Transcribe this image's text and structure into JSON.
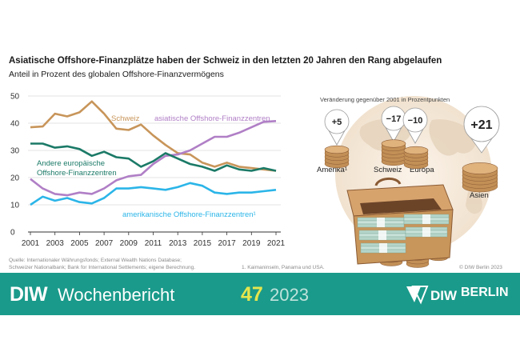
{
  "header": {
    "title": "Asiatische Offshore-Finanzplätze haben der Schweiz in den letzten 20 Jahren den Rang abgelaufen",
    "subtitle": "Anteil in Prozent des globalen Offshore-Finanzvermögens"
  },
  "chart_data": {
    "type": "line",
    "title": "Asiatische Offshore-Finanzplätze haben der Schweiz in den letzten 20 Jahren den Rang abgelaufen",
    "subtitle": "Anteil in Prozent des globalen Offshore-Finanzvermögens",
    "xlabel": "",
    "ylabel": "",
    "ylim": [
      0,
      50
    ],
    "yticks": [
      "0",
      "10",
      "20",
      "30",
      "40",
      "50"
    ],
    "xlim": [
      2001,
      2021
    ],
    "xticks": [
      "2001",
      "2003",
      "2005",
      "2007",
      "2009",
      "2011",
      "2013",
      "2015",
      "2017",
      "2019",
      "2021"
    ],
    "x": [
      2001,
      2002,
      2003,
      2004,
      2005,
      2006,
      2007,
      2008,
      2009,
      2010,
      2011,
      2012,
      2013,
      2014,
      2015,
      2016,
      2017,
      2018,
      2019,
      2020,
      2021
    ],
    "series": [
      {
        "name": "Schweiz",
        "label": "Schweiz",
        "color": "#c8955a",
        "values": [
          38.5,
          38.8,
          43.5,
          42.5,
          44.0,
          48.0,
          43.5,
          38.0,
          37.5,
          39.5,
          35.5,
          32.0,
          29.0,
          28.5,
          25.5,
          24.0,
          25.5,
          24.0,
          23.5,
          23.0,
          22.5
        ]
      },
      {
        "name": "asiatische Offshore-Finanzzentren",
        "label": "asiatische Offshore-Finanzzentren",
        "color": "#b07fc6",
        "values": [
          19.5,
          16.0,
          14.0,
          13.5,
          14.5,
          14.0,
          16.0,
          19.0,
          20.5,
          21.0,
          25.0,
          28.0,
          28.5,
          30.0,
          32.5,
          35.0,
          35.0,
          36.5,
          38.5,
          40.5,
          40.8
        ]
      },
      {
        "name": "Andere europäische Offshore-Finanzzentren",
        "label_lines": [
          "Andere europäische",
          "Offshore-Finanzzentren"
        ],
        "color": "#1b7a67",
        "values": [
          32.5,
          32.5,
          31.0,
          31.5,
          30.5,
          28.0,
          29.5,
          27.5,
          27.0,
          24.0,
          26.0,
          29.0,
          27.0,
          25.0,
          24.0,
          22.5,
          24.5,
          23.0,
          22.5,
          23.5,
          22.5
        ]
      },
      {
        "name": "amerikanische Offshore-Finanzzentren",
        "label": "amerikanische Offshore-Finanzzentren¹",
        "color": "#2bb5e8",
        "values": [
          10.0,
          13.0,
          11.5,
          12.5,
          11.0,
          10.5,
          12.5,
          16.0,
          16.0,
          16.5,
          16.0,
          15.5,
          16.5,
          18.0,
          17.0,
          14.5,
          14.0,
          14.5,
          14.5,
          15.0,
          15.5
        ]
      }
    ],
    "change_since_2001": {
      "caption": "Veränderung gegenüber 2001 in Prozentpunkten",
      "items": [
        {
          "region": "Amerika¹",
          "value": "+5"
        },
        {
          "region": "Schweiz",
          "value": "−17"
        },
        {
          "region": "Europa",
          "value": "−10"
        },
        {
          "region": "Asien",
          "value": "+21"
        }
      ]
    }
  },
  "footer": {
    "source_line1": "Quelle: Internationaler Währungsfonds; External Wealth Nations Database;",
    "source_line2": "Schweizer Nationalbank; Bank for International Settlements; eigene Berechnung.",
    "footnote": "1. Kaimaninseln, Panama und USA.",
    "copyright": "© DIW Berlin 2023"
  },
  "banner": {
    "logo": "DIW",
    "name": "Wochenbericht",
    "issue": "47",
    "year": "2023",
    "berlin_logo": "DIW BERLIN",
    "berlin_word": "BERLIN"
  },
  "colors": {
    "banner": "#1a9a8a",
    "issue": "#e6e64d",
    "coin": "#c89a62"
  }
}
